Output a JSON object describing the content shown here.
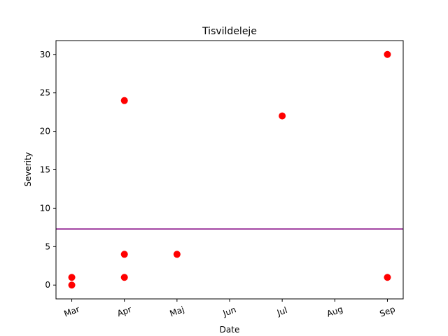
{
  "chart_data": {
    "type": "scatter",
    "title": "Tisvildeleje",
    "xlabel": "Date",
    "ylabel": "Severity",
    "x_ticks": [
      "Mar",
      "Apr",
      "Maj",
      "Jun",
      "Jul",
      "Aug",
      "Sep"
    ],
    "y_ticks": [
      0,
      5,
      10,
      15,
      20,
      25,
      30
    ],
    "ylim": [
      -1.8,
      31.8
    ],
    "grid": false,
    "reference_line": {
      "y": 7.3,
      "color": "#800080"
    },
    "marker_color": "#ff0000",
    "points": [
      {
        "x": "Mar",
        "y": 1
      },
      {
        "x": "Mar",
        "y": 0
      },
      {
        "x": "Apr",
        "y": 24
      },
      {
        "x": "Apr",
        "y": 4
      },
      {
        "x": "Apr",
        "y": 1
      },
      {
        "x": "Maj",
        "y": 4
      },
      {
        "x": "Jul",
        "y": 22
      },
      {
        "x": "Sep",
        "y": 30
      },
      {
        "x": "Sep",
        "y": 1
      }
    ]
  }
}
